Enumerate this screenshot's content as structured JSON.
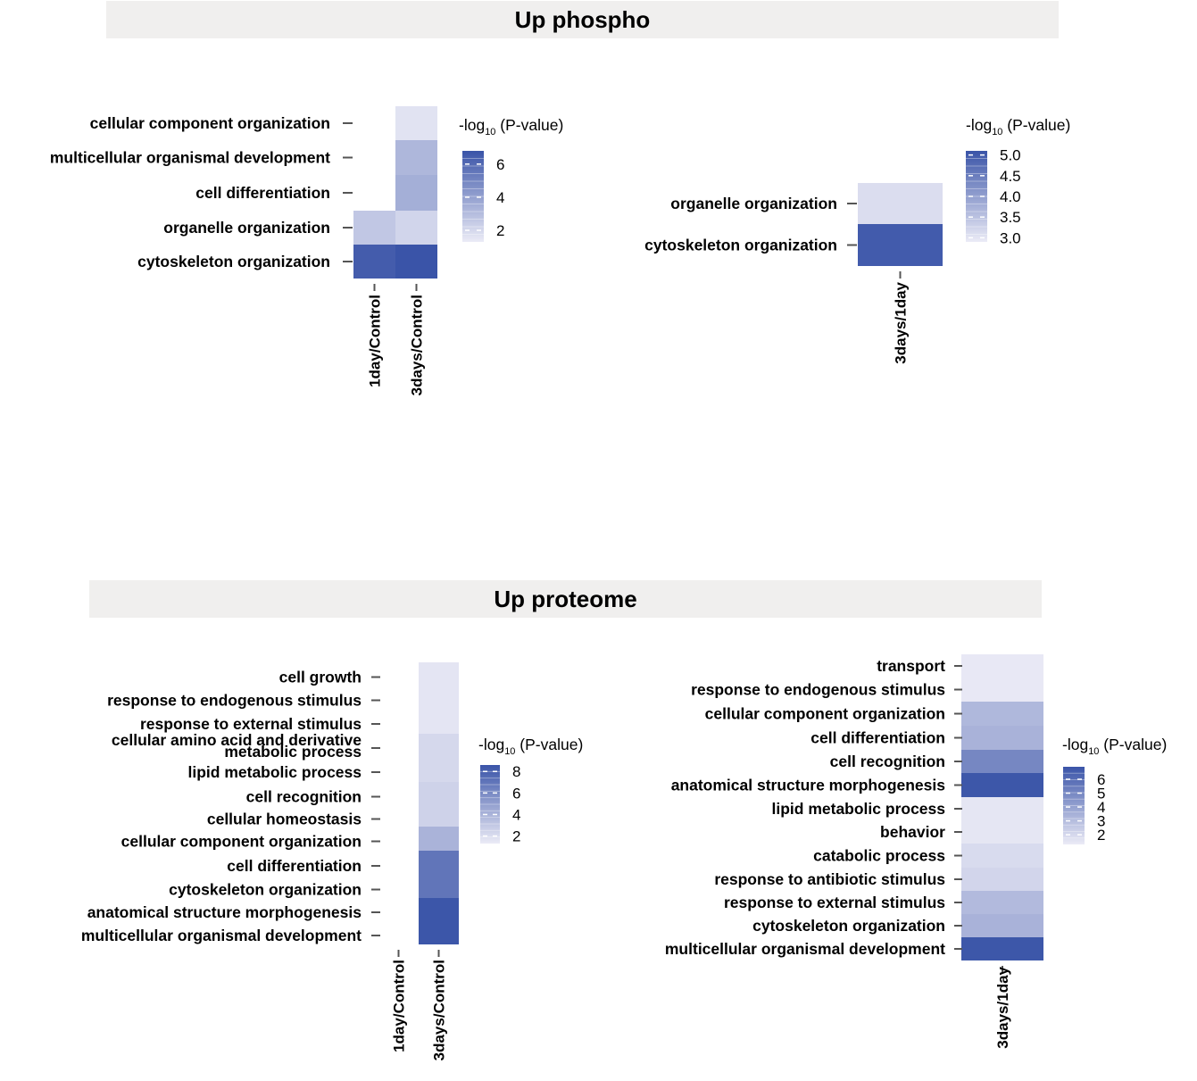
{
  "sections": {
    "phospho_title": "Up phospho",
    "proteome_title": "Up proteome"
  },
  "chart_data": [
    {
      "type": "heatmap",
      "section": "Up phospho",
      "columns": [
        "1day/Control",
        "3days/Control"
      ],
      "rows": [
        "cellular component organization",
        "multicellular organismal development",
        "cell differentiation",
        "organelle organization",
        "cytoskeleton organization"
      ],
      "values": [
        [
          null,
          1.6
        ],
        [
          null,
          3.2
        ],
        [
          null,
          3.5
        ],
        [
          2.6,
          2.1
        ],
        [
          6.5,
          6.8
        ]
      ],
      "legend": {
        "title": "-log",
        "subscript": "10",
        "title_suffix": " (P-value)",
        "ticks": [
          2,
          4,
          6
        ],
        "range": [
          1.3,
          6.8
        ]
      }
    },
    {
      "type": "heatmap",
      "section": "Up phospho",
      "columns": [
        "3days/1day"
      ],
      "rows": [
        "organelle organization",
        "cytoskeleton organization"
      ],
      "values": [
        [
          3.1
        ],
        [
          5.0
        ]
      ],
      "legend": {
        "title": "-log",
        "subscript": "10",
        "title_suffix": " (P-value)",
        "ticks": [
          "3.0",
          "3.5",
          "4.0",
          "4.5",
          "5.0"
        ],
        "range": [
          2.9,
          5.1
        ]
      }
    },
    {
      "type": "heatmap",
      "section": "Up proteome",
      "columns": [
        "1day/Control",
        "3days/Control"
      ],
      "rows": [
        "cell growth",
        "response to endogenous stimulus",
        "response to external stimulus",
        "cellular amino acid and derivative metabolic process",
        "lipid metabolic process",
        "cell recognition",
        "cellular homeostasis",
        "cellular component organization",
        "cell differentiation",
        "cytoskeleton organization",
        "anatomical structure morphogenesis",
        "multicellular organismal development"
      ],
      "row_label_lines": [
        [
          "cell growth"
        ],
        [
          "response to endogenous stimulus"
        ],
        [
          "response to external stimulus"
        ],
        [
          "cellular amino acid and derivative",
          "metabolic process"
        ],
        [
          "lipid metabolic process"
        ],
        [
          "cell recognition"
        ],
        [
          "cellular homeostasis"
        ],
        [
          "cellular component organization"
        ],
        [
          "cell differentiation"
        ],
        [
          "cytoskeleton organization"
        ],
        [
          "anatomical structure morphogenesis"
        ],
        [
          "multicellular organismal development"
        ]
      ],
      "values": [
        [
          null,
          1.6
        ],
        [
          null,
          1.6
        ],
        [
          null,
          1.6
        ],
        [
          null,
          2.2
        ],
        [
          null,
          2.2
        ],
        [
          null,
          2.5
        ],
        [
          null,
          2.5
        ],
        [
          null,
          4.0
        ],
        [
          null,
          7.0
        ],
        [
          null,
          7.0
        ],
        [
          null,
          8.5
        ],
        [
          null,
          8.5
        ]
      ],
      "legend": {
        "title": "-log",
        "subscript": "10",
        "title_suffix": " (P-value)",
        "ticks": [
          2,
          4,
          6,
          8
        ],
        "range": [
          1.3,
          8.6
        ]
      }
    },
    {
      "type": "heatmap",
      "section": "Up proteome",
      "columns": [
        "3days/1day"
      ],
      "rows": [
        "transport",
        "response to endogenous stimulus",
        "cellular component organization",
        "cell differentiation",
        "cell recognition",
        "anatomical structure morphogenesis",
        "lipid metabolic process",
        "behavior",
        "catabolic process",
        "response to antibiotic stimulus",
        "response to external stimulus",
        "cytoskeleton organization",
        "multicellular organismal development"
      ],
      "values": [
        [
          1.4
        ],
        [
          1.4
        ],
        [
          3.2
        ],
        [
          3.4
        ],
        [
          5.0
        ],
        [
          6.8
        ],
        [
          1.5
        ],
        [
          1.5
        ],
        [
          1.9
        ],
        [
          2.1
        ],
        [
          3.1
        ],
        [
          3.4
        ],
        [
          6.8
        ]
      ],
      "legend": {
        "title": "-log",
        "subscript": "10",
        "title_suffix": " (P-value)",
        "ticks": [
          2,
          3,
          4,
          5,
          6
        ],
        "range": [
          1.3,
          6.9
        ]
      }
    }
  ],
  "colors": {
    "low": "#ebebf6",
    "high": "#3a54a8",
    "tick": "#555555",
    "banner": "#f0efee"
  }
}
